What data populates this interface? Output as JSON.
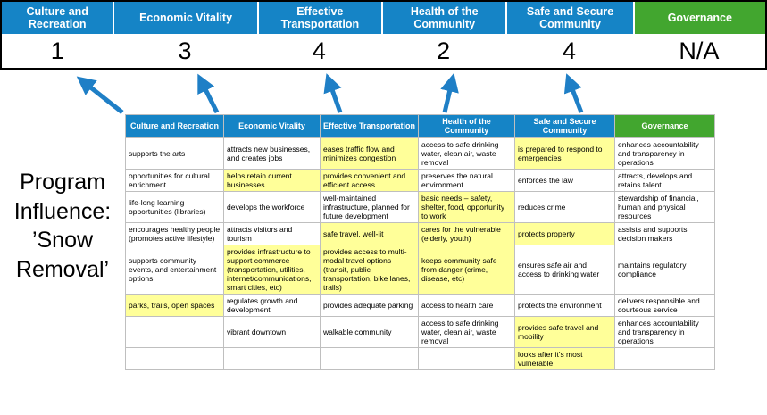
{
  "title": "Program Influence: ’Snow Removal’",
  "colors": {
    "header_blue": "#1584C6",
    "governance_green": "#42A62F",
    "highlight_yellow": "#FFFF99",
    "arrow_blue": "#1F7FC6"
  },
  "scoreboard": {
    "columns": [
      {
        "label": "Culture and Recreation",
        "score": "1",
        "color": "blue"
      },
      {
        "label": "Economic Vitality",
        "score": "3",
        "color": "blue"
      },
      {
        "label": "Effective Transportation",
        "score": "4",
        "color": "blue"
      },
      {
        "label": "Health of the Community",
        "score": "2",
        "color": "blue"
      },
      {
        "label": "Safe and Secure Community",
        "score": "4",
        "color": "blue"
      },
      {
        "label": "Governance",
        "score": "N/A",
        "color": "green"
      }
    ]
  },
  "matrix": {
    "headers": [
      "Culture and Recreation",
      "Economic Vitality",
      "Effective Transportation",
      "Health of the Community",
      "Safe and Secure Community",
      "Governance"
    ],
    "rows": [
      [
        {
          "text": "supports the arts",
          "highlight": false
        },
        {
          "text": "attracts new businesses, and creates jobs",
          "highlight": false
        },
        {
          "text": "eases traffic flow and minimizes congestion",
          "highlight": true
        },
        {
          "text": "access to safe drinking water, clean air, waste removal",
          "highlight": false
        },
        {
          "text": "is prepared to respond to emergencies",
          "highlight": true
        },
        {
          "text": "enhances accountability and transparency in operations",
          "highlight": false
        }
      ],
      [
        {
          "text": "opportunities for cultural enrichment",
          "highlight": false
        },
        {
          "text": "helps retain current businesses",
          "highlight": true
        },
        {
          "text": "provides convenient and efficient access",
          "highlight": true
        },
        {
          "text": "preserves the natural environment",
          "highlight": false
        },
        {
          "text": "enforces the law",
          "highlight": false
        },
        {
          "text": "attracts, develops and retains talent",
          "highlight": false
        }
      ],
      [
        {
          "text": "life-long learning opportunities (libraries)",
          "highlight": false
        },
        {
          "text": "develops the workforce",
          "highlight": false
        },
        {
          "text": "well-maintained infrastructure, planned for future development",
          "highlight": false
        },
        {
          "text": "basic needs – safety, shelter, food, opportunity to work",
          "highlight": true
        },
        {
          "text": "reduces crime",
          "highlight": false
        },
        {
          "text": "stewardship of financial, human and physical resources",
          "highlight": false
        }
      ],
      [
        {
          "text": "encourages healthy people (promotes active lifestyle)",
          "highlight": false
        },
        {
          "text": "attracts visitors and tourism",
          "highlight": false
        },
        {
          "text": "safe travel, well-lit",
          "highlight": true
        },
        {
          "text": "cares for the vulnerable (elderly, youth)",
          "highlight": true
        },
        {
          "text": "protects property",
          "highlight": true
        },
        {
          "text": "assists and supports decision makers",
          "highlight": false
        }
      ],
      [
        {
          "text": "supports community events, and entertainment options",
          "highlight": false
        },
        {
          "text": "provides infrastructure to support commerce (transportation, utilities, internet/communications, smart cities, etc)",
          "highlight": true
        },
        {
          "text": "provides access to multi-modal travel options (transit, public transportation, bike lanes, trails)",
          "highlight": true
        },
        {
          "text": "keeps community safe from danger (crime, disease, etc)",
          "highlight": true
        },
        {
          "text": "ensures safe air and access to drinking water",
          "highlight": false
        },
        {
          "text": "maintains regulatory compliance",
          "highlight": false
        }
      ],
      [
        {
          "text": "parks, trails, open spaces",
          "highlight": true
        },
        {
          "text": "regulates growth and development",
          "highlight": false
        },
        {
          "text": "provides adequate parking",
          "highlight": false
        },
        {
          "text": "access to health care",
          "highlight": false
        },
        {
          "text": "protects the environment",
          "highlight": false
        },
        {
          "text": "delivers responsible and courteous service",
          "highlight": false
        }
      ],
      [
        {
          "text": "",
          "highlight": false
        },
        {
          "text": "vibrant downtown",
          "highlight": false
        },
        {
          "text": "walkable community",
          "highlight": false
        },
        {
          "text": "access to safe drinking water, clean air, waste removal",
          "highlight": false
        },
        {
          "text": "provides safe travel and mobility",
          "highlight": true
        },
        {
          "text": "enhances accountability and transparency in operations",
          "highlight": false
        }
      ],
      [
        {
          "text": "",
          "highlight": false
        },
        {
          "text": "",
          "highlight": false
        },
        {
          "text": "",
          "highlight": false
        },
        {
          "text": "",
          "highlight": false
        },
        {
          "text": "looks after it's most vulnerable",
          "highlight": true
        },
        {
          "text": "",
          "highlight": false
        }
      ]
    ]
  }
}
